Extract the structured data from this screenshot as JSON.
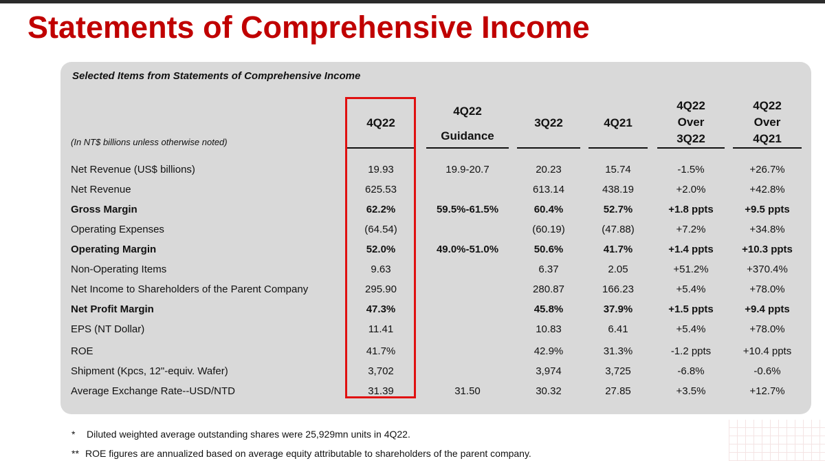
{
  "title": "Statements of Comprehensive Income",
  "panel_heading": "Selected Items from Statements of Comprehensive Income",
  "units_note": "(In NT$ billions unless otherwise noted)",
  "highlight_color": "#e01010",
  "title_color": "#c00000",
  "columns": [
    {
      "lines": [
        "4Q22"
      ]
    },
    {
      "lines": [
        "4Q22",
        "Guidance"
      ]
    },
    {
      "lines": [
        "3Q22"
      ]
    },
    {
      "lines": [
        "4Q21"
      ]
    },
    {
      "lines": [
        "4Q22",
        "Over",
        "3Q22"
      ]
    },
    {
      "lines": [
        "4Q22",
        "Over",
        "4Q21"
      ]
    }
  ],
  "rows": [
    {
      "label": "Net Revenue (US$ billions)",
      "values": [
        "19.93",
        "19.9-20.7",
        "20.23",
        "15.74",
        "-1.5%",
        "+26.7%"
      ]
    },
    {
      "label": "Net Revenue",
      "values": [
        "625.53",
        "",
        "613.14",
        "438.19",
        "+2.0%",
        "+42.8%"
      ]
    },
    {
      "label": "Gross Margin",
      "values": [
        "62.2%",
        "59.5%-61.5%",
        "60.4%",
        "52.7%",
        "+1.8 ppts",
        "+9.5 ppts"
      ]
    },
    {
      "label": "Operating Expenses",
      "values": [
        "(64.54)",
        "",
        "(60.19)",
        "(47.88)",
        "+7.2%",
        "+34.8%"
      ]
    },
    {
      "label": "Operating Margin",
      "values": [
        "52.0%",
        "49.0%-51.0%",
        "50.6%",
        "41.7%",
        "+1.4 ppts",
        "+10.3 ppts"
      ]
    },
    {
      "label": "Non-Operating Items",
      "values": [
        "9.63",
        "",
        "6.37",
        "2.05",
        "+51.2%",
        "+370.4%"
      ]
    },
    {
      "label": "Net Income to Shareholders of the Parent Company",
      "values": [
        "295.90",
        "",
        "280.87",
        "166.23",
        "+5.4%",
        "+78.0%"
      ]
    },
    {
      "label": "Net Profit Margin",
      "values": [
        "47.3%",
        "",
        "45.8%",
        "37.9%",
        "+1.5 ppts",
        "+9.4 ppts"
      ]
    },
    {
      "label": "EPS (NT Dollar)",
      "values": [
        "11.41",
        "",
        "10.83",
        "6.41",
        "+5.4%",
        "+78.0%"
      ]
    },
    {
      "label": "ROE",
      "values": [
        "41.7%",
        "",
        "42.9%",
        "31.3%",
        "-1.2 ppts",
        "+10.4 ppts"
      ]
    },
    {
      "label": "Shipment (Kpcs, 12\"-equiv. Wafer)",
      "values": [
        "3,702",
        "",
        "3,974",
        "3,725",
        "-6.8%",
        "-0.6%"
      ]
    },
    {
      "label": "Average Exchange Rate--USD/NTD",
      "values": [
        "31.39",
        "31.50",
        "30.32",
        "27.85",
        "+3.5%",
        "+12.7%"
      ]
    }
  ],
  "bold_rows": [
    2,
    4,
    7
  ],
  "footnotes": [
    {
      "marker": "*",
      "text": "Diluted weighted average outstanding shares were 25,929mn units in 4Q22."
    },
    {
      "marker": "**",
      "text": "ROE figures are annualized based on average equity attributable to shareholders of the parent company."
    }
  ]
}
